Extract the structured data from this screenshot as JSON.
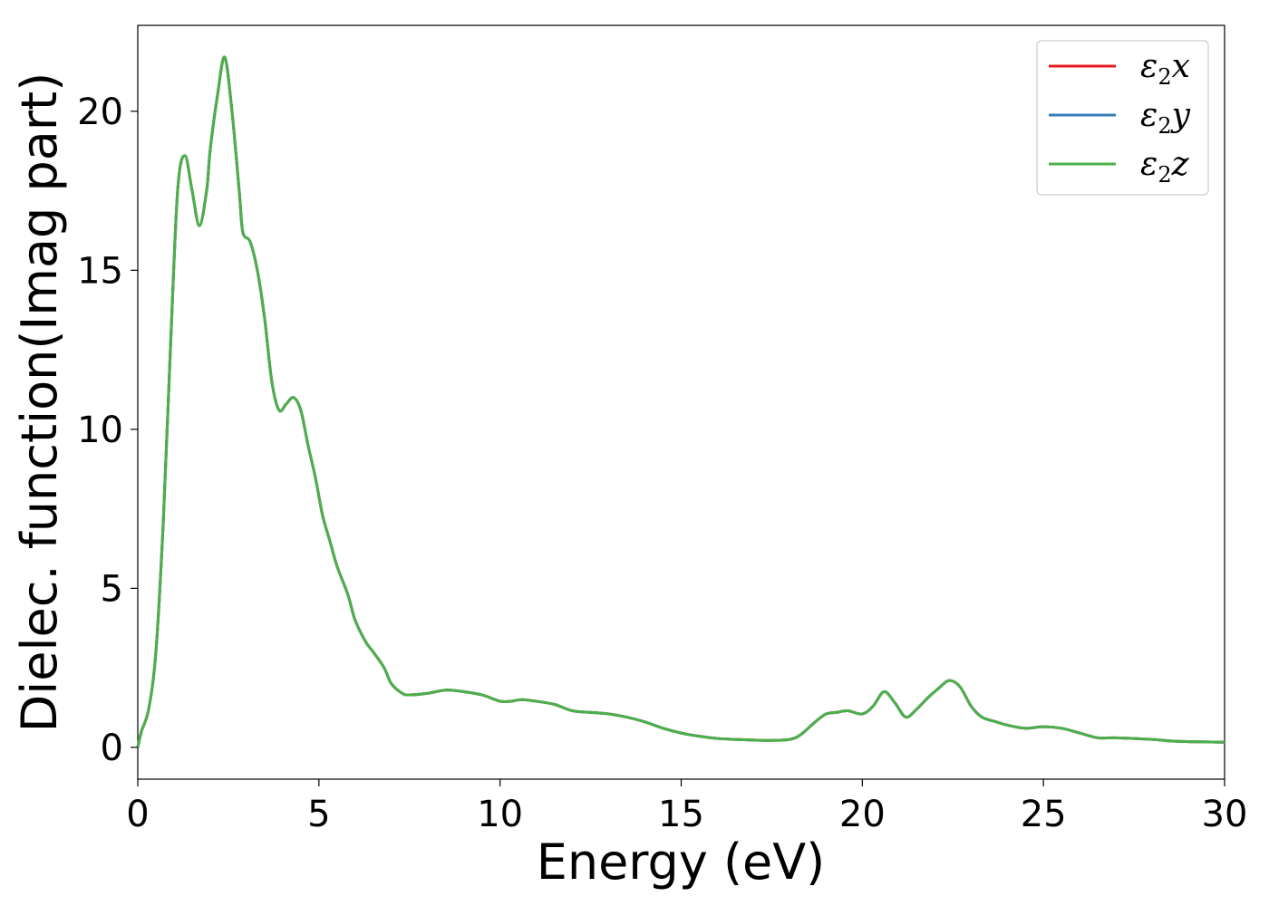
{
  "chart_data": {
    "type": "line",
    "title": "",
    "xlabel": "Energy (eV)",
    "ylabel": "Dielec. function(Imag part)",
    "xlim": [
      0,
      30
    ],
    "ylim": [
      -1,
      22.7
    ],
    "xticks": [
      0,
      5,
      10,
      15,
      20,
      25,
      30
    ],
    "yticks": [
      0,
      5,
      10,
      15,
      20
    ],
    "grid": false,
    "legend_position": "top-right",
    "x": [
      0,
      0.1,
      0.3,
      0.5,
      0.7,
      0.9,
      1.1,
      1.3,
      1.5,
      1.7,
      1.9,
      2.0,
      2.2,
      2.4,
      2.6,
      2.8,
      2.9,
      3.1,
      3.3,
      3.5,
      3.7,
      3.9,
      4.1,
      4.3,
      4.5,
      4.7,
      4.9,
      5.1,
      5.3,
      5.5,
      5.8,
      6.0,
      6.3,
      6.5,
      6.8,
      7.0,
      7.3,
      7.5,
      8.0,
      8.5,
      9.0,
      9.5,
      10.0,
      10.3,
      10.6,
      11.0,
      11.5,
      12.0,
      12.5,
      13.0,
      13.5,
      14.0,
      14.5,
      15.0,
      15.5,
      16.0,
      16.5,
      17.0,
      17.5,
      18.0,
      18.3,
      18.7,
      19.0,
      19.3,
      19.6,
      20.0,
      20.3,
      20.6,
      20.9,
      21.2,
      21.5,
      21.8,
      22.1,
      22.4,
      22.7,
      23.0,
      23.3,
      23.7,
      24.0,
      24.5,
      25.0,
      25.5,
      26.0,
      26.5,
      27.0,
      28.0,
      28.5,
      29.0,
      30.0
    ],
    "series": [
      {
        "name": "ε2x",
        "color": "#e41a1c",
        "values": [
          0.0,
          0.5,
          1.2,
          3.0,
          7.0,
          12.5,
          17.5,
          18.6,
          17.5,
          16.4,
          17.5,
          18.8,
          20.5,
          21.7,
          20.0,
          17.5,
          16.2,
          15.9,
          15.0,
          13.5,
          11.5,
          10.6,
          10.8,
          11.0,
          10.6,
          9.5,
          8.5,
          7.3,
          6.5,
          5.7,
          4.8,
          4.0,
          3.3,
          3.0,
          2.5,
          2.0,
          1.7,
          1.65,
          1.7,
          1.8,
          1.75,
          1.65,
          1.45,
          1.45,
          1.5,
          1.45,
          1.35,
          1.15,
          1.1,
          1.05,
          0.95,
          0.8,
          0.6,
          0.45,
          0.35,
          0.28,
          0.25,
          0.23,
          0.22,
          0.25,
          0.4,
          0.8,
          1.05,
          1.1,
          1.15,
          1.05,
          1.3,
          1.75,
          1.4,
          0.95,
          1.2,
          1.55,
          1.85,
          2.1,
          1.9,
          1.3,
          0.95,
          0.8,
          0.7,
          0.6,
          0.65,
          0.6,
          0.45,
          0.3,
          0.3,
          0.25,
          0.2,
          0.18,
          0.16
        ]
      },
      {
        "name": "ε2y",
        "color": "#377eb8",
        "values": [
          0.0,
          0.5,
          1.2,
          3.0,
          7.0,
          12.5,
          17.5,
          18.6,
          17.5,
          16.4,
          17.5,
          18.8,
          20.5,
          21.7,
          20.0,
          17.5,
          16.2,
          15.9,
          15.0,
          13.5,
          11.5,
          10.6,
          10.8,
          11.0,
          10.6,
          9.5,
          8.5,
          7.3,
          6.5,
          5.7,
          4.8,
          4.0,
          3.3,
          3.0,
          2.5,
          2.0,
          1.7,
          1.65,
          1.7,
          1.8,
          1.75,
          1.65,
          1.45,
          1.45,
          1.5,
          1.45,
          1.35,
          1.15,
          1.1,
          1.05,
          0.95,
          0.8,
          0.6,
          0.45,
          0.35,
          0.28,
          0.25,
          0.23,
          0.22,
          0.25,
          0.4,
          0.8,
          1.05,
          1.1,
          1.15,
          1.05,
          1.3,
          1.75,
          1.4,
          0.95,
          1.2,
          1.55,
          1.85,
          2.1,
          1.9,
          1.3,
          0.95,
          0.8,
          0.7,
          0.6,
          0.65,
          0.6,
          0.45,
          0.3,
          0.3,
          0.25,
          0.2,
          0.18,
          0.16
        ]
      },
      {
        "name": "ε2z",
        "color": "#4daf4a",
        "values": [
          0.0,
          0.5,
          1.2,
          3.0,
          7.0,
          12.5,
          17.5,
          18.6,
          17.5,
          16.4,
          17.5,
          18.8,
          20.5,
          21.7,
          20.0,
          17.5,
          16.2,
          15.9,
          15.0,
          13.5,
          11.5,
          10.6,
          10.8,
          11.0,
          10.6,
          9.5,
          8.5,
          7.3,
          6.5,
          5.7,
          4.8,
          4.0,
          3.3,
          3.0,
          2.5,
          2.0,
          1.7,
          1.65,
          1.7,
          1.8,
          1.75,
          1.65,
          1.45,
          1.45,
          1.5,
          1.45,
          1.35,
          1.15,
          1.1,
          1.05,
          0.95,
          0.8,
          0.6,
          0.45,
          0.35,
          0.28,
          0.25,
          0.23,
          0.22,
          0.25,
          0.4,
          0.8,
          1.05,
          1.1,
          1.15,
          1.05,
          1.3,
          1.75,
          1.4,
          0.95,
          1.2,
          1.55,
          1.85,
          2.1,
          1.9,
          1.3,
          0.95,
          0.8,
          0.7,
          0.6,
          0.65,
          0.6,
          0.45,
          0.3,
          0.3,
          0.25,
          0.2,
          0.18,
          0.16
        ]
      }
    ],
    "legend": [
      {
        "symbol": "ε",
        "sub": "2",
        "axis": "x",
        "color": "#e41a1c"
      },
      {
        "symbol": "ε",
        "sub": "2",
        "axis": "y",
        "color": "#377eb8"
      },
      {
        "symbol": "ε",
        "sub": "2",
        "axis": "z",
        "color": "#4daf4a"
      }
    ]
  }
}
